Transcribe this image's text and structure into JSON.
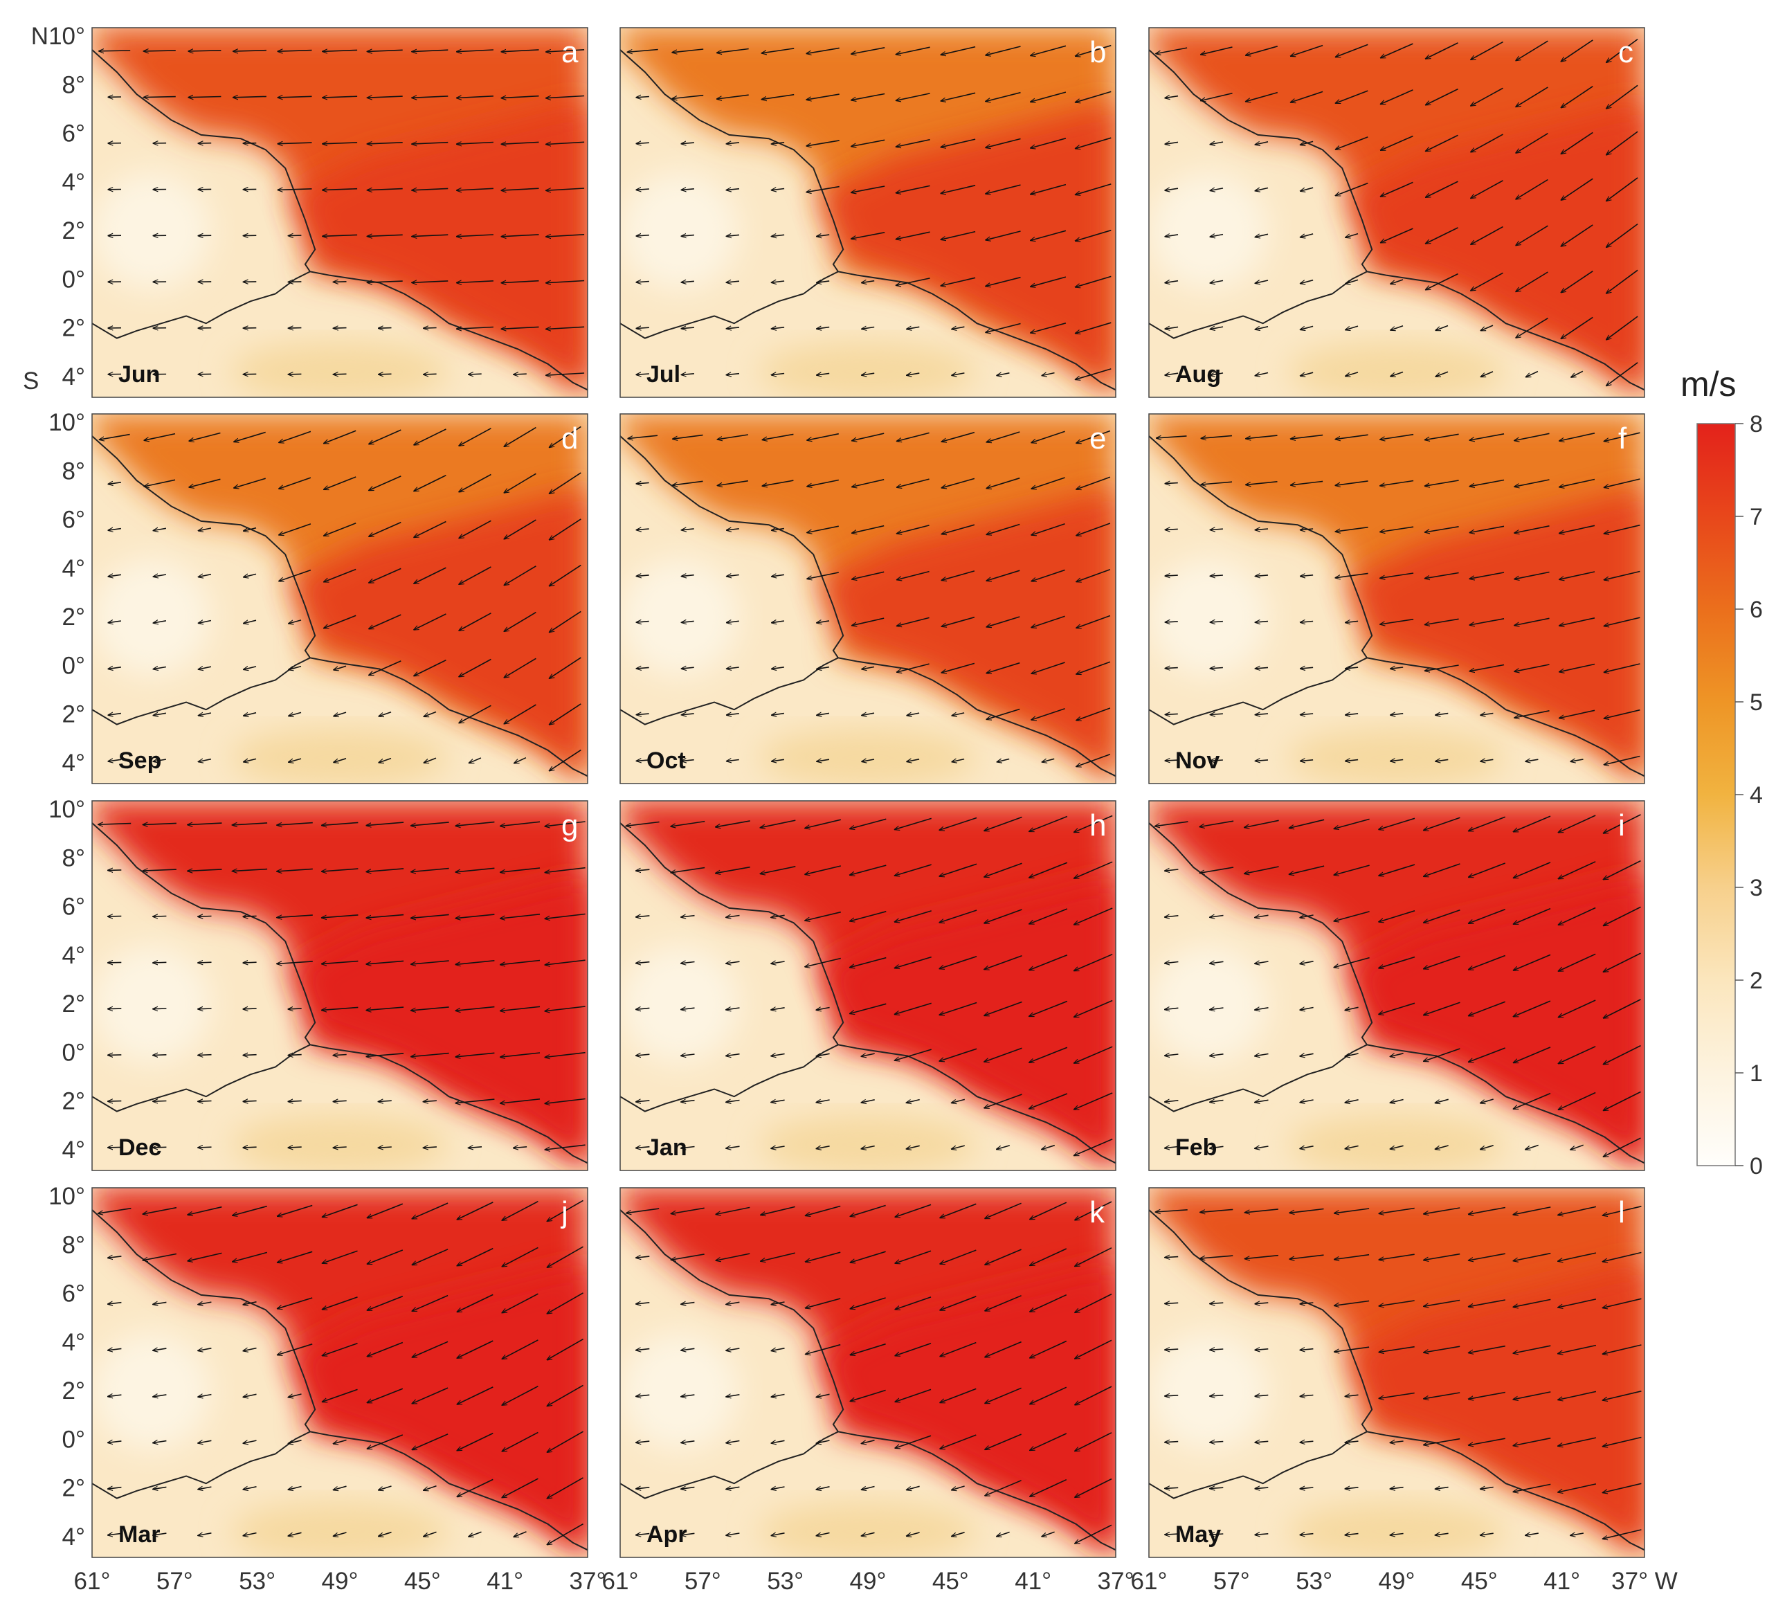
{
  "figure": {
    "type": "seasonal wind speed maps",
    "unit": "m/s",
    "colorbar": {
      "min": 0,
      "max": 8,
      "ticks": [
        "0",
        "1",
        "2",
        "3",
        "4",
        "5",
        "6",
        "7",
        "8"
      ],
      "colors": [
        "#fffefb",
        "#fdf3df",
        "#fbe6bd",
        "#f7d08c",
        "#f1b340",
        "#ee9526",
        "#eb6f1c",
        "#e8471b",
        "#e3221b"
      ]
    },
    "lat_ticks": [
      "N10°",
      "8°",
      "6°",
      "4°",
      "2°",
      "0°",
      "2°",
      "4°"
    ],
    "lat_ticks_other": [
      "10°",
      "8°",
      "6°",
      "4°",
      "2°",
      "0°",
      "2°",
      "4°"
    ],
    "south_label": "S",
    "lon_ticks": [
      "61°",
      "57°",
      "53°",
      "49°",
      "45°",
      "41°",
      "37°"
    ],
    "lon_ticks_last": [
      "61°",
      "57°",
      "53°",
      "49°",
      "45°",
      "41°",
      "37° W"
    ],
    "panels": [
      {
        "letter": "a",
        "month": "Jun",
        "intensity": 0.82,
        "tilt": 0.05
      },
      {
        "letter": "b",
        "month": "Jul",
        "intensity": 0.78,
        "tilt": 0.25
      },
      {
        "letter": "c",
        "month": "Aug",
        "intensity": 0.85,
        "tilt": 0.55
      },
      {
        "letter": "d",
        "month": "Sep",
        "intensity": 0.8,
        "tilt": 0.5
      },
      {
        "letter": "e",
        "month": "Oct",
        "intensity": 0.72,
        "tilt": 0.3
      },
      {
        "letter": "f",
        "month": "Nov",
        "intensity": 0.76,
        "tilt": 0.2
      },
      {
        "letter": "g",
        "month": "Dec",
        "intensity": 0.92,
        "tilt": 0.1
      },
      {
        "letter": "h",
        "month": "Jan",
        "intensity": 0.97,
        "tilt": 0.35
      },
      {
        "letter": "i",
        "month": "Feb",
        "intensity": 0.97,
        "tilt": 0.4
      },
      {
        "letter": "j",
        "month": "Mar",
        "intensity": 0.96,
        "tilt": 0.45
      },
      {
        "letter": "k",
        "month": "Apr",
        "intensity": 0.94,
        "tilt": 0.4
      },
      {
        "letter": "l",
        "month": "May",
        "intensity": 0.88,
        "tilt": 0.2
      }
    ]
  }
}
